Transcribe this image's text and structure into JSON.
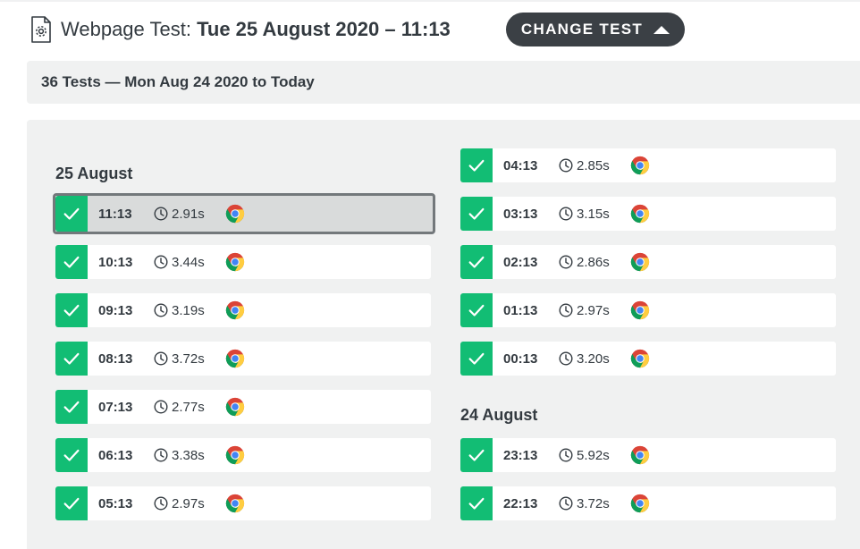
{
  "header": {
    "title_prefix": "Webpage Test:",
    "title_date": "Tue 25 August 2020 – 11:13",
    "change_button": "CHANGE TEST"
  },
  "summary": "36 Tests — Mon Aug 24 2020 to Today",
  "colors": {
    "check_green": "#12bd74",
    "button_dark": "#3b4045",
    "panel_bg": "#f0f1f1"
  },
  "groups": {
    "aug25": {
      "heading": "25 August",
      "tests": [
        {
          "time": "11:13",
          "duration": "2.91s",
          "browser": "chrome-icon",
          "selected": true
        },
        {
          "time": "10:13",
          "duration": "3.44s",
          "browser": "chrome-icon"
        },
        {
          "time": "09:13",
          "duration": "3.19s",
          "browser": "chrome-icon"
        },
        {
          "time": "08:13",
          "duration": "3.72s",
          "browser": "chrome-icon"
        },
        {
          "time": "07:13",
          "duration": "2.77s",
          "browser": "chrome-icon"
        },
        {
          "time": "06:13",
          "duration": "3.38s",
          "browser": "chrome-icon"
        },
        {
          "time": "05:13",
          "duration": "2.97s",
          "browser": "chrome-icon"
        },
        {
          "time": "04:13",
          "duration": "2.85s",
          "browser": "chrome-icon"
        },
        {
          "time": "03:13",
          "duration": "3.15s",
          "browser": "chrome-icon"
        },
        {
          "time": "02:13",
          "duration": "2.86s",
          "browser": "chrome-icon"
        },
        {
          "time": "01:13",
          "duration": "2.97s",
          "browser": "chrome-icon"
        },
        {
          "time": "00:13",
          "duration": "3.20s",
          "browser": "chrome-icon"
        }
      ]
    },
    "aug24": {
      "heading": "24 August",
      "tests": [
        {
          "time": "23:13",
          "duration": "5.92s",
          "browser": "chrome-icon"
        },
        {
          "time": "22:13",
          "duration": "3.72s",
          "browser": "chrome-icon"
        }
      ]
    }
  }
}
